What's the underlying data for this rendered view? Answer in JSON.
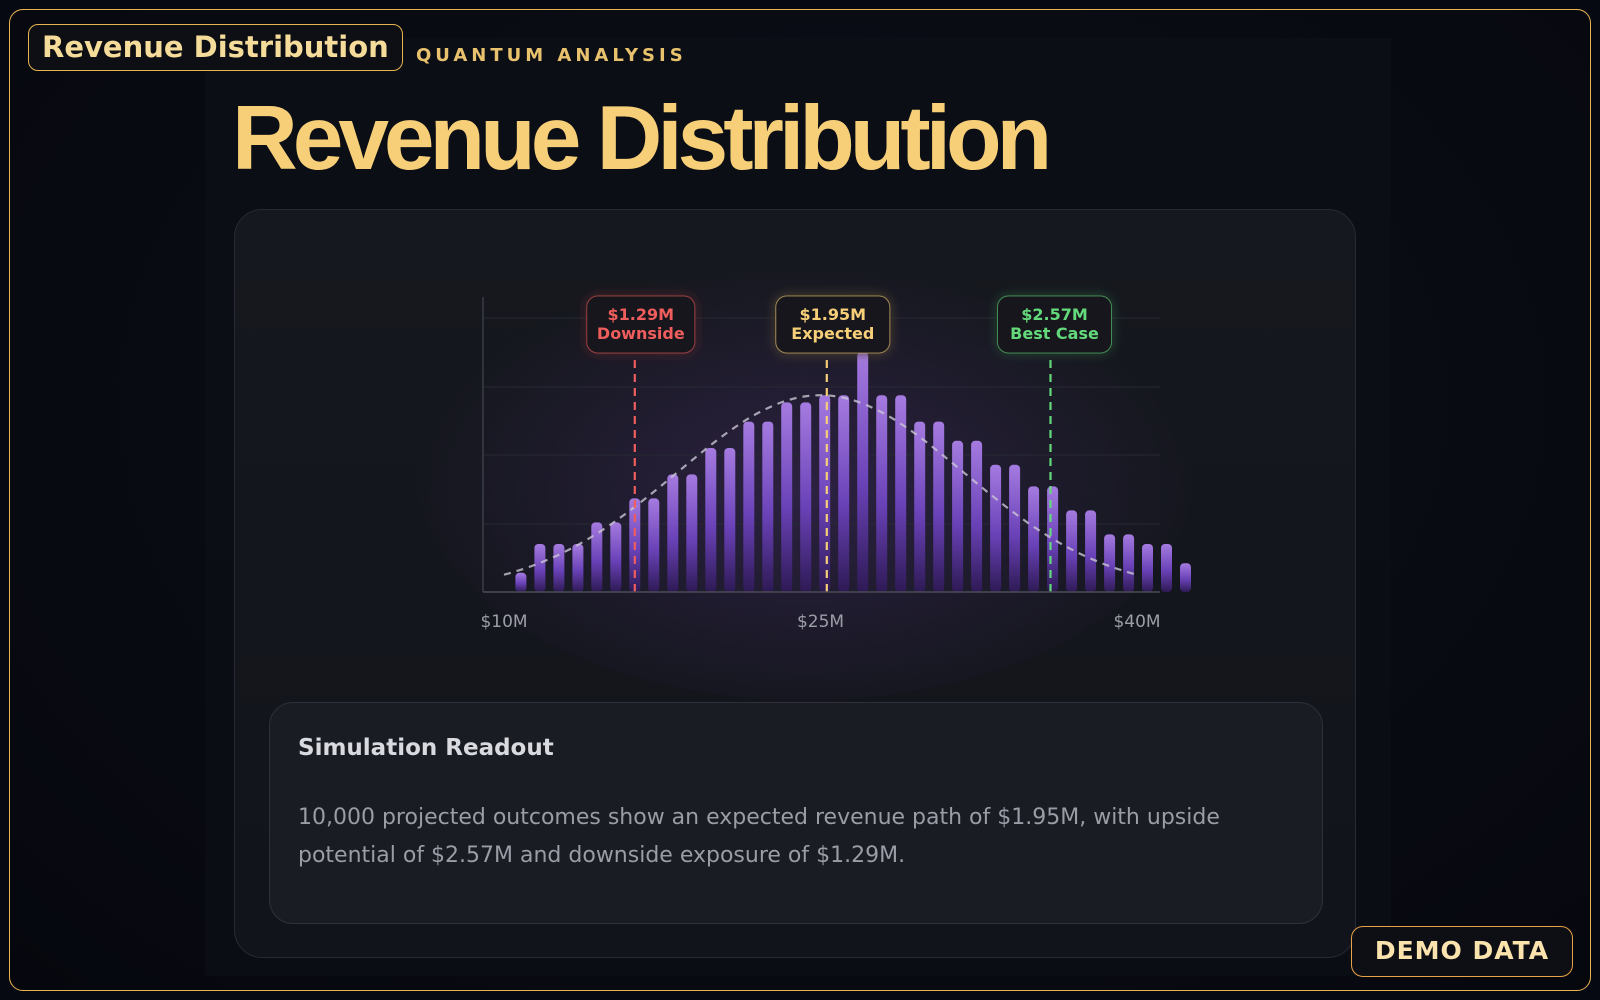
{
  "header_badge": "Revenue Distribution",
  "eyebrow": "QUANTUM ANALYSIS",
  "title": "Revenue Distribution",
  "footer_badge": "DEMO DATA",
  "readout": {
    "title": "Simulation Readout",
    "body": "10,000 projected outcomes show an expected revenue path of $1.95M, with upside potential of $2.57M and downside exposure of $1.29M."
  },
  "colors": {
    "accent": "#f6cf78",
    "bar_top": "#a57be0",
    "bar_bottom": "#2e1a55",
    "downside": "#ef5d5d",
    "expected": "#f6cf78",
    "best_case": "#63d97b"
  },
  "chart_data": {
    "type": "bar",
    "title": "",
    "xlabel": "",
    "ylabel": "",
    "xlim": [
      10,
      40
    ],
    "x_unit": "$M",
    "tick_labels": [
      "$10M",
      "$25M",
      "$40M"
    ],
    "tick_values": [
      10,
      25,
      40
    ],
    "ylim": [
      0,
      1.05
    ],
    "grid": true,
    "values": [
      0.08,
      0.2,
      0.2,
      0.2,
      0.29,
      0.29,
      0.39,
      0.39,
      0.49,
      0.49,
      0.6,
      0.6,
      0.71,
      0.71,
      0.79,
      0.79,
      0.82,
      0.82,
      1.0,
      0.82,
      0.82,
      0.71,
      0.71,
      0.63,
      0.63,
      0.53,
      0.53,
      0.44,
      0.44,
      0.34,
      0.34,
      0.24,
      0.24,
      0.2,
      0.2,
      0.12
    ],
    "bar_x": [
      10.8,
      11.7,
      12.6,
      13.5,
      14.4,
      15.3,
      16.2,
      17.1,
      18.0,
      18.9,
      19.8,
      20.7,
      21.6,
      22.5,
      23.4,
      24.3,
      25.2,
      26.1,
      27.0,
      27.9,
      28.8,
      29.7,
      30.6,
      31.5,
      32.4,
      33.3,
      34.2,
      35.1,
      36.0,
      36.9,
      37.8,
      38.7,
      39.6,
      40.5,
      41.4,
      42.3
    ],
    "curve": {
      "type": "normal",
      "mean": 25,
      "sd": 6.8,
      "peak": 0.82
    },
    "markers": [
      {
        "x": 16.2,
        "value": "$1.29M",
        "label": "Downside",
        "color_key": "downside"
      },
      {
        "x": 25.3,
        "value": "$1.95M",
        "label": "Expected",
        "color_key": "expected"
      },
      {
        "x": 35.9,
        "value": "$2.57M",
        "label": "Best Case",
        "color_key": "best_case"
      }
    ]
  }
}
